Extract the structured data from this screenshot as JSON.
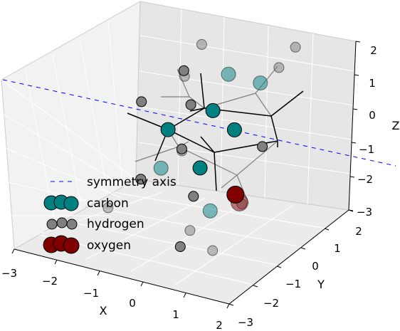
{
  "chart_data": {
    "type": "scatter3d",
    "axes": {
      "x": {
        "label": "X",
        "ticks": [
          "−3",
          "−2",
          "−1",
          "0",
          "1",
          "2"
        ],
        "range": [
          -3,
          2
        ]
      },
      "y": {
        "label": "Y",
        "ticks": [
          "−3",
          "−2",
          "−1",
          "0",
          "1",
          "2"
        ],
        "range": [
          -3,
          2
        ]
      },
      "z": {
        "label": "Z",
        "ticks": [
          "−3",
          "−2",
          "−1",
          "0",
          "1",
          "2"
        ],
        "range": [
          -3,
          2
        ]
      }
    },
    "grid": true,
    "legend": {
      "placement": "lower-left",
      "items": [
        {
          "label": "symmetry axis",
          "marker": "dashed-line",
          "color": "#0000ff"
        },
        {
          "label": "carbon",
          "marker": "circle",
          "color": "#008080"
        },
        {
          "label": "hydrogen",
          "marker": "circle",
          "color": "#808080"
        },
        {
          "label": "oxygen",
          "marker": "circle",
          "color": "#800000"
        }
      ]
    },
    "series": [
      {
        "name": "carbon",
        "color": "#008080",
        "points": [
          {
            "x": -0.2,
            "y": 0.6,
            "z": 0.5,
            "depth": "front"
          },
          {
            "x": -1.0,
            "y": 0.2,
            "z": -0.1,
            "depth": "front"
          },
          {
            "x": 0.2,
            "y": -0.6,
            "z": -0.4,
            "depth": "front"
          },
          {
            "x": 0.9,
            "y": -0.5,
            "z": 0.9,
            "depth": "front"
          },
          {
            "x": -0.3,
            "y": 1.4,
            "z": 1.1,
            "depth": "back"
          },
          {
            "x": -0.7,
            "y": -0.6,
            "z": -0.7,
            "depth": "back"
          },
          {
            "x": 0.6,
            "y": 1.1,
            "z": 1.3,
            "depth": "back"
          },
          {
            "x": 0.9,
            "y": -1.4,
            "z": -1.0,
            "depth": "back"
          }
        ]
      },
      {
        "name": "hydrogen",
        "color": "#808080",
        "points": [
          {
            "x": -0.8,
            "y": 0.4,
            "z": 1.6,
            "depth": "front"
          },
          {
            "x": -1.8,
            "y": 0.5,
            "z": 0.3,
            "depth": "front"
          },
          {
            "x": -1.1,
            "y": -0.7,
            "z": -1.1,
            "depth": "front"
          },
          {
            "x": -0.5,
            "y": 0.2,
            "z": 0.8,
            "depth": "front"
          },
          {
            "x": -0.4,
            "y": -0.3,
            "z": -0.2,
            "depth": "front"
          },
          {
            "x": 1.4,
            "y": -0.2,
            "z": 0.4,
            "depth": "front"
          },
          {
            "x": 0.5,
            "y": -1.4,
            "z": -0.7,
            "depth": "front"
          },
          {
            "x": 0.3,
            "y": -1.5,
            "z": -2.2,
            "depth": "front"
          },
          {
            "x": -1.0,
            "y": 1.5,
            "z": 1.7,
            "depth": "back"
          },
          {
            "x": -1.1,
            "y": 1.0,
            "z": 1.0,
            "depth": "back"
          },
          {
            "x": 0.8,
            "y": 1.5,
            "z": 1.6,
            "depth": "back"
          },
          {
            "x": 1.0,
            "y": 1.8,
            "z": 2.1,
            "depth": "back"
          },
          {
            "x": -1.4,
            "y": -1.5,
            "z": -1.6,
            "depth": "back"
          },
          {
            "x": -0.5,
            "y": -0.1,
            "z": -0.4,
            "depth": "back"
          },
          {
            "x": 0.4,
            "y": -1.3,
            "z": -1.8,
            "depth": "back"
          },
          {
            "x": 1.1,
            "y": -1.6,
            "z": -2.0,
            "depth": "back"
          },
          {
            "x": 1.3,
            "y": -0.8,
            "z": -1.0,
            "depth": "back"
          }
        ]
      },
      {
        "name": "oxygen",
        "color": "#800000",
        "points": [
          {
            "x": 1.2,
            "y": -0.9,
            "z": -0.7,
            "depth": "front"
          },
          {
            "x": 1.3,
            "y": -0.9,
            "z": -0.9,
            "depth": "back"
          }
        ]
      }
    ]
  }
}
